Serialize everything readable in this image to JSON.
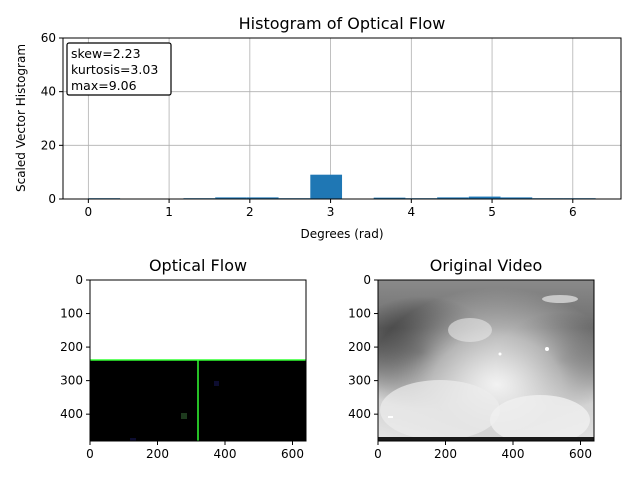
{
  "chart_data": [
    {
      "type": "bar",
      "title": "Histogram of Optical Flow",
      "xlabel": "Degrees (rad)",
      "ylabel": "Scaled Vector Histogram",
      "xlim": [
        -0.314,
        6.597
      ],
      "ylim": [
        0,
        60
      ],
      "xticks": [
        0,
        1,
        2,
        3,
        4,
        5,
        6
      ],
      "yticks": [
        0,
        20,
        40,
        60
      ],
      "grid": true,
      "bar_color": "#1f77b4",
      "bin_edges": [
        0,
        0.393,
        0.785,
        1.178,
        1.571,
        1.963,
        2.356,
        2.749,
        3.142,
        3.534,
        3.927,
        4.32,
        4.712,
        5.105,
        5.498,
        5.89,
        6.283
      ],
      "values": [
        0.3,
        0.0,
        0.0,
        0.3,
        0.6,
        0.6,
        0.3,
        9.06,
        0.0,
        0.5,
        0.3,
        0.6,
        0.9,
        0.6,
        0.3,
        0.3
      ],
      "annotation": [
        "skew=2.23",
        "kurtosis=3.03",
        "max=9.06"
      ],
      "annotation_position": "top-left"
    },
    {
      "type": "image",
      "title": "Optical Flow",
      "xlim": [
        0,
        640
      ],
      "ylim": [
        480,
        0
      ],
      "xticks": [
        0,
        200,
        400,
        600
      ],
      "yticks": [
        0,
        100,
        200,
        300,
        400
      ],
      "blank_color": "#ffffff",
      "flow_background": "#000000",
      "flow_start_row": 240,
      "crosshair": {
        "x": 320,
        "y": 240,
        "color": "#33ff33"
      }
    },
    {
      "type": "image",
      "title": "Original Video",
      "xlim": [
        0,
        640
      ],
      "ylim": [
        480,
        0
      ],
      "xticks": [
        0,
        200,
        400,
        600
      ],
      "yticks": [
        0,
        100,
        200,
        300,
        400
      ]
    }
  ]
}
